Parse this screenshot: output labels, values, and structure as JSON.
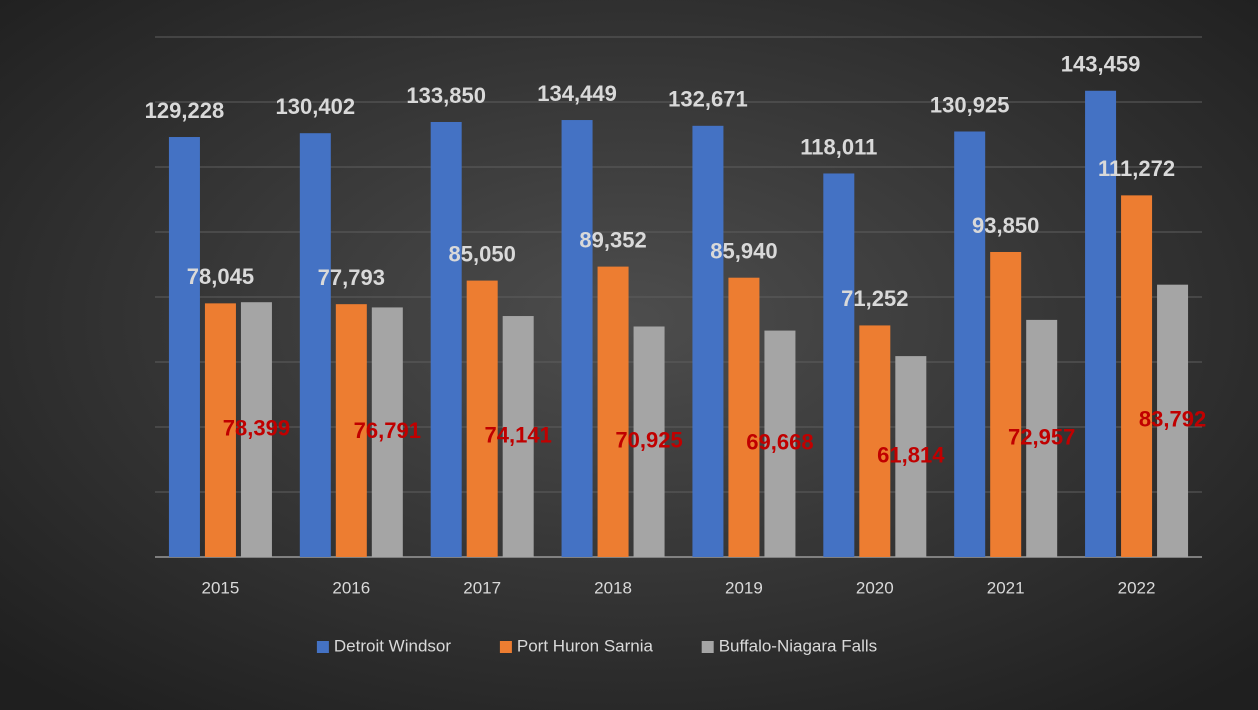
{
  "chart_data": {
    "type": "bar",
    "categories": [
      "2015",
      "2016",
      "2017",
      "2018",
      "2019",
      "2020",
      "2021",
      "2022"
    ],
    "series": [
      {
        "name": "Detroit Windsor",
        "color": "#4472c4",
        "label_color": "#d9d9d9",
        "values": [
          129228,
          130402,
          133850,
          134449,
          132671,
          118011,
          130925,
          143459
        ],
        "value_labels": [
          "129,228",
          "130,402",
          "133,850",
          "134,449",
          "132,671",
          "118,011",
          "130,925",
          "143,459"
        ]
      },
      {
        "name": "Port Huron Sarnia",
        "color": "#ed7d31",
        "label_color": "#d9d9d9",
        "values": [
          78045,
          77793,
          85050,
          89352,
          85940,
          71252,
          93850,
          111272
        ],
        "value_labels": [
          "78,045",
          "77,793",
          "85,050",
          "89,352",
          "85,940",
          "71,252",
          "93,850",
          "111,272"
        ]
      },
      {
        "name": "Buffalo-Niagara Falls",
        "color": "#a5a5a5",
        "label_color": "#c00000",
        "values": [
          78399,
          76791,
          74141,
          70925,
          69668,
          61814,
          72957,
          83792
        ],
        "value_labels": [
          "78,399",
          "76,791",
          "74,141",
          "70,925",
          "69,668",
          "61,814",
          "72,957",
          "83,792"
        ]
      }
    ],
    "ylim": [
      0,
      160000
    ],
    "yticks": [
      0,
      20000,
      40000,
      60000,
      80000,
      100000,
      120000,
      140000,
      160000
    ],
    "grid": true,
    "legend": "bottom"
  }
}
